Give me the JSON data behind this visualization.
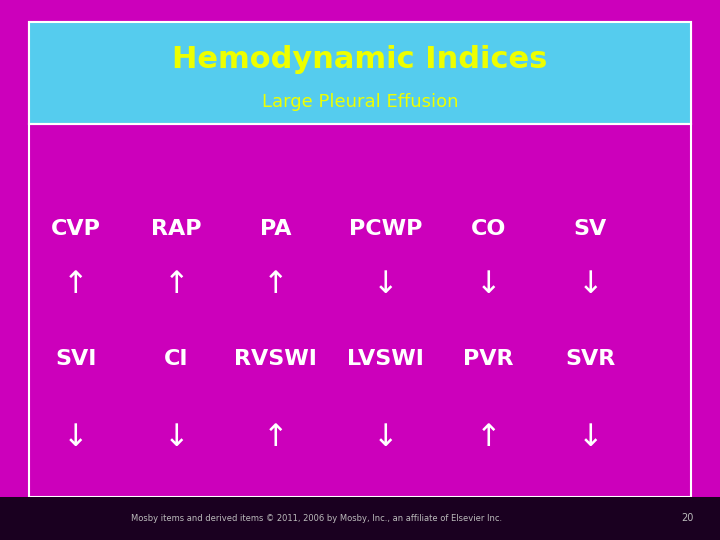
{
  "bg_color": "#CC00BB",
  "header_bg": "#55CCEE",
  "inner_bg": "#CC00BB",
  "title": "Hemodynamic Indices",
  "subtitle": "Large Pleural Effusion",
  "title_color": "#EEFF00",
  "subtitle_color": "#EEFF00",
  "title_fontsize": 22,
  "subtitle_fontsize": 13,
  "row1_labels": [
    "CVP",
    "RAP",
    "PA",
    "PCWP",
    "CO",
    "SV"
  ],
  "row1_arrows": [
    "↑",
    "↑",
    "↑",
    "↓",
    "↓",
    "↓"
  ],
  "row2_labels": [
    "SVI",
    "CI",
    "RVSWI",
    "LVSWI",
    "PVR",
    "SVR"
  ],
  "row2_arrows": [
    "↓",
    "↓",
    "↑",
    "↓",
    "↑",
    "↓"
  ],
  "label_color": "#FFFFFF",
  "arrow_color": "#FFFFFF",
  "label_fontsize": 16,
  "arrow_fontsize": 22,
  "x_positions": [
    0.105,
    0.245,
    0.383,
    0.535,
    0.678,
    0.82
  ],
  "footer_text": "Mosby items and derived items © 2011, 2006 by Mosby, Inc., an affiliate of Elsevier Inc.",
  "footer_page": "20",
  "footer_color": "#BBBBBB",
  "footer_bg": "#1A0020"
}
